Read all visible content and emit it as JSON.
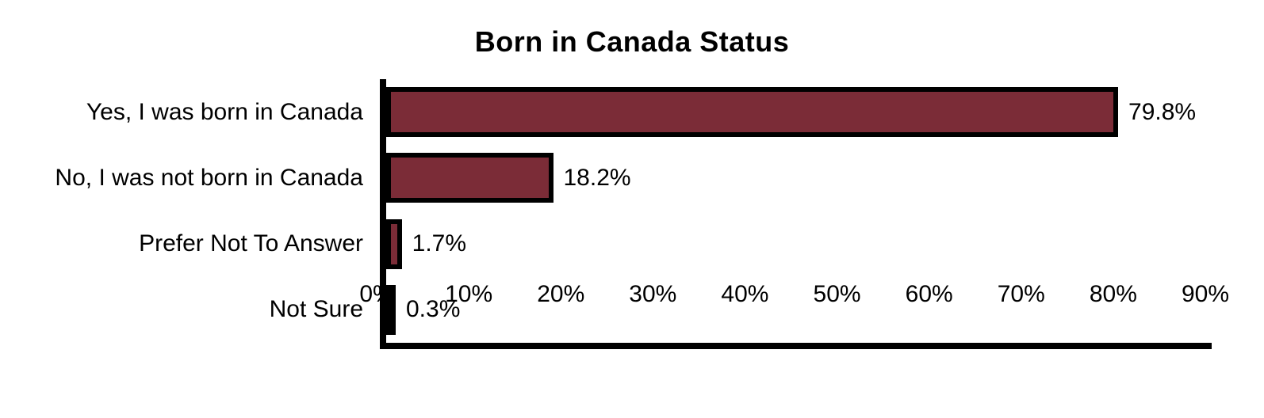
{
  "chart_data": {
    "type": "bar",
    "orientation": "horizontal",
    "title": "Born in Canada Status",
    "categories": [
      "Yes, I was born in Canada",
      "No, I was not born in Canada",
      "Prefer Not To Answer",
      "Not Sure"
    ],
    "values": [
      79.8,
      18.2,
      1.7,
      0.3
    ],
    "value_labels": [
      "79.8%",
      "18.2%",
      "1.7%",
      "0.3%"
    ],
    "x_tick_labels": [
      "0%",
      "10%",
      "20%",
      "30%",
      "40%",
      "50%",
      "60%",
      "70%",
      "80%",
      "90%"
    ],
    "xlim": [
      0,
      90
    ],
    "xlabel": "",
    "ylabel": "",
    "grid": false,
    "legend": false
  },
  "colors": {
    "bar_fill": "#7B2C37",
    "bar_border": "#000000",
    "axis": "#000000",
    "text": "#000000",
    "background": "#FFFFFF"
  }
}
